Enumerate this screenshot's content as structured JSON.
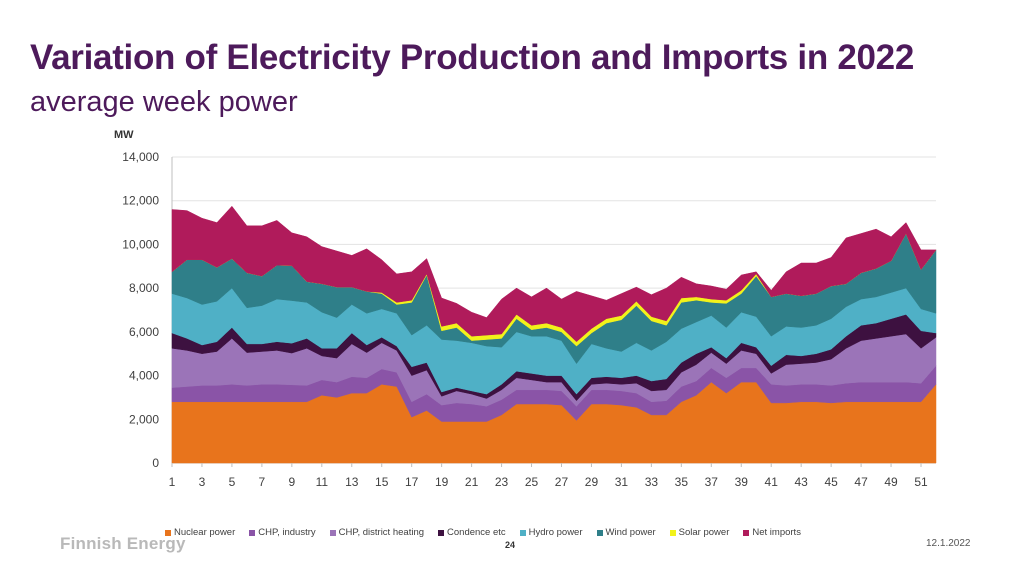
{
  "header": {
    "title": "Variation of Electricity Production and Imports in 2022",
    "subtitle": "average week power"
  },
  "footer": {
    "logo_text": "Finnish Energy",
    "slide_number": "24",
    "date": "12.1.2022"
  },
  "chart_data": {
    "type": "area",
    "stacked": true,
    "title": "Variation of Electricity Production and Imports in 2022",
    "subtitle": "average week power",
    "ylabel": "MW",
    "xlabel": "",
    "ylim": [
      0,
      14000
    ],
    "yticks": [
      0,
      2000,
      4000,
      6000,
      8000,
      10000,
      12000,
      14000
    ],
    "ytick_labels": [
      "0",
      "2,000",
      "4,000",
      "6,000",
      "8,000",
      "10,000",
      "12,000",
      "14,000"
    ],
    "xticks": [
      1,
      3,
      5,
      7,
      9,
      11,
      13,
      15,
      17,
      19,
      21,
      23,
      25,
      27,
      29,
      31,
      33,
      35,
      37,
      39,
      41,
      43,
      45,
      47,
      49,
      51
    ],
    "x": [
      1,
      2,
      3,
      4,
      5,
      6,
      7,
      8,
      9,
      10,
      11,
      12,
      13,
      14,
      15,
      16,
      17,
      18,
      19,
      20,
      21,
      22,
      23,
      24,
      25,
      26,
      27,
      28,
      29,
      30,
      31,
      32,
      33,
      34,
      35,
      36,
      37,
      38,
      39,
      40,
      41,
      42,
      43,
      44,
      45,
      46,
      47,
      48,
      49,
      50,
      51,
      52
    ],
    "grid": "horizontal",
    "legend_position": "bottom",
    "series": [
      {
        "name": "Nuclear power",
        "color": "#e8741c",
        "values": [
          2800,
          2800,
          2800,
          2800,
          2800,
          2800,
          2800,
          2800,
          2800,
          2800,
          3100,
          3000,
          3200,
          3200,
          3600,
          3500,
          2100,
          2400,
          1900,
          1900,
          1900,
          1900,
          2200,
          2700,
          2700,
          2700,
          2650,
          1950,
          2700,
          2700,
          2650,
          2550,
          2200,
          2200,
          2800,
          3100,
          3700,
          3200,
          3700,
          3700,
          2750,
          2750,
          2800,
          2800,
          2750,
          2800,
          2800,
          2800,
          2800,
          2800,
          2800,
          3600
        ]
      },
      {
        "name": "CHP, industry",
        "color": "#8a54a7",
        "values": [
          650,
          700,
          750,
          750,
          800,
          750,
          800,
          800,
          780,
          750,
          700,
          700,
          750,
          700,
          700,
          650,
          700,
          750,
          750,
          850,
          800,
          700,
          700,
          650,
          650,
          650,
          650,
          650,
          650,
          650,
          650,
          650,
          600,
          650,
          700,
          650,
          650,
          700,
          650,
          650,
          850,
          800,
          800,
          800,
          800,
          850,
          900,
          900,
          900,
          900,
          850,
          850
        ]
      },
      {
        "name": "CHP, district heating",
        "color": "#9b74b8",
        "values": [
          1800,
          1650,
          1450,
          1550,
          2100,
          1500,
          1500,
          1550,
          1450,
          1700,
          1100,
          1100,
          1500,
          1150,
          1200,
          1000,
          1200,
          1100,
          400,
          550,
          450,
          350,
          450,
          550,
          450,
          350,
          400,
          250,
          250,
          300,
          300,
          450,
          500,
          500,
          650,
          750,
          700,
          650,
          800,
          650,
          500,
          950,
          950,
          1000,
          1200,
          1600,
          1900,
          2000,
          2100,
          2200,
          1600,
          1300
        ]
      },
      {
        "name": "Condence etc",
        "color": "#3d1140",
        "values": [
          700,
          550,
          400,
          450,
          500,
          400,
          350,
          400,
          450,
          450,
          350,
          450,
          500,
          350,
          250,
          200,
          400,
          350,
          200,
          150,
          150,
          200,
          250,
          300,
          300,
          300,
          300,
          300,
          300,
          300,
          300,
          350,
          450,
          500,
          450,
          500,
          250,
          250,
          350,
          300,
          350,
          450,
          350,
          400,
          450,
          550,
          700,
          700,
          800,
          900,
          800,
          200
        ]
      },
      {
        "name": "Hydro power",
        "color": "#4fb0c6",
        "values": [
          1800,
          1850,
          1850,
          1850,
          1800,
          1650,
          1750,
          1950,
          1950,
          1650,
          1650,
          1400,
          1300,
          1450,
          1300,
          1500,
          1450,
          1700,
          2400,
          2150,
          2200,
          2200,
          1700,
          1800,
          1700,
          1800,
          1600,
          1400,
          1550,
          1300,
          1200,
          1500,
          1400,
          1700,
          1550,
          1450,
          1450,
          1400,
          1400,
          1400,
          1350,
          1300,
          1300,
          1300,
          1400,
          1350,
          1200,
          1200,
          1200,
          1200,
          1000,
          900
        ]
      },
      {
        "name": "Wind power",
        "color": "#2f7f89",
        "values": [
          1000,
          1750,
          2050,
          1550,
          1350,
          1600,
          1350,
          1550,
          1600,
          950,
          1300,
          1400,
          800,
          1000,
          700,
          400,
          1500,
          2300,
          400,
          600,
          100,
          300,
          400,
          600,
          300,
          400,
          400,
          800,
          500,
          1150,
          1450,
          1700,
          1350,
          750,
          1200,
          1000,
          600,
          1100,
          850,
          1850,
          1800,
          1500,
          1450,
          1450,
          1500,
          1050,
          1200,
          1300,
          1450,
          2500,
          1800,
          2900
        ]
      },
      {
        "name": "Solar power",
        "color": "#f2f21a",
        "values": [
          0,
          0,
          0,
          0,
          0,
          0,
          0,
          0,
          0,
          0,
          0,
          0,
          0,
          0,
          50,
          100,
          100,
          50,
          200,
          200,
          200,
          200,
          200,
          200,
          200,
          200,
          200,
          200,
          200,
          200,
          200,
          200,
          200,
          200,
          200,
          150,
          150,
          150,
          150,
          100,
          0,
          0,
          0,
          0,
          0,
          0,
          0,
          0,
          0,
          0,
          0,
          0
        ]
      },
      {
        "name": "Net imports",
        "color": "#b01b5b",
        "values": [
          2850,
          2250,
          1900,
          2050,
          2400,
          2150,
          2300,
          2050,
          1500,
          2050,
          1700,
          1650,
          1450,
          1950,
          1500,
          1300,
          1300,
          700,
          1300,
          900,
          1100,
          800,
          1600,
          1200,
          1300,
          1600,
          1300,
          2300,
          1500,
          850,
          1000,
          650,
          1000,
          1500,
          950,
          600,
          600,
          500,
          700,
          100,
          300,
          1000,
          1500,
          1400,
          1300,
          2100,
          1800,
          1800,
          1100,
          500,
          900,
          0
        ]
      }
    ]
  }
}
